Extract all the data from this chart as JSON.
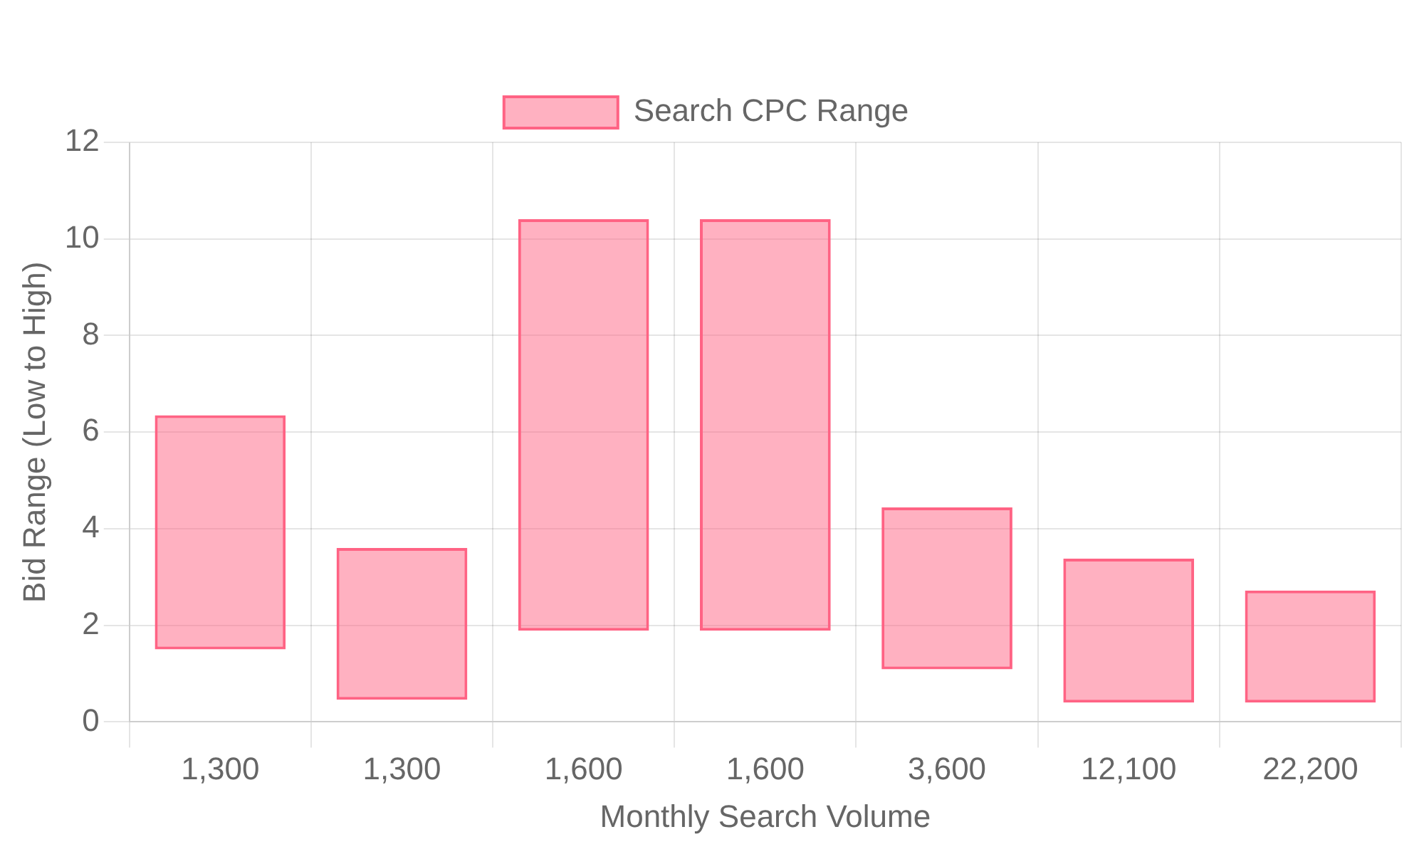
{
  "chart_data": {
    "type": "bar",
    "categories": [
      "1,300",
      "1,300",
      "1,600",
      "1,600",
      "3,600",
      "12,100",
      "22,200"
    ],
    "series": [
      {
        "name": "Search CPC Range",
        "color": "#ff6384",
        "base": [
          1.5,
          0.46,
          1.89,
          1.89,
          1.09,
          0.4,
          0.4
        ],
        "values": [
          4.85,
          3.14,
          8.52,
          8.52,
          3.35,
          2.98,
          2.32
        ]
      }
    ],
    "xlabel": "Monthly Search Volume",
    "ylabel": "Bid Range (Low to High)",
    "ylim": [
      0,
      12
    ],
    "yticks": [
      0,
      2,
      4,
      6,
      8,
      10,
      12
    ],
    "grid": true,
    "legend": "top"
  }
}
